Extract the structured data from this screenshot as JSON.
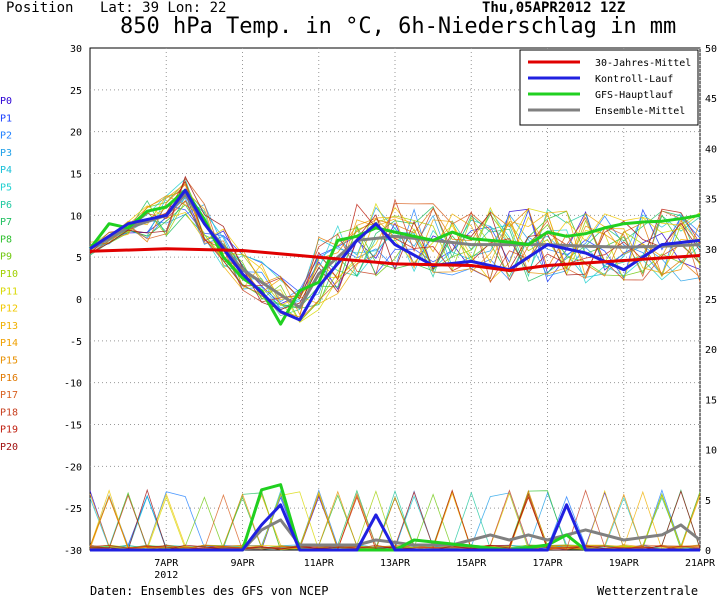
{
  "header": {
    "position_label": "Position",
    "coords": "Lat: 39  Lon: 22",
    "datestamp": "Thu,05APR2012 12Z",
    "title": "850 hPa Temp. in °C, 6h-Niederschlag in mm"
  },
  "footer": {
    "source": "Daten: Ensembles des GFS von NCEP",
    "credit": "Wetterzentrale"
  },
  "members": [
    {
      "name": "P0",
      "color": "#2a00d4"
    },
    {
      "name": "P1",
      "color": "#1a40ff"
    },
    {
      "name": "P2",
      "color": "#2080ff"
    },
    {
      "name": "P3",
      "color": "#20a0e8"
    },
    {
      "name": "P4",
      "color": "#18c0d8"
    },
    {
      "name": "P5",
      "color": "#20d0d0"
    },
    {
      "name": "P6",
      "color": "#20c8a0"
    },
    {
      "name": "P7",
      "color": "#20c060"
    },
    {
      "name": "P8",
      "color": "#30c030"
    },
    {
      "name": "P9",
      "color": "#70c810"
    },
    {
      "name": "P10",
      "color": "#a0d000"
    },
    {
      "name": "P11",
      "color": "#d8d800"
    },
    {
      "name": "P12",
      "color": "#f0c800"
    },
    {
      "name": "P13",
      "color": "#f0b000"
    },
    {
      "name": "P14",
      "color": "#f0a000"
    },
    {
      "name": "P15",
      "color": "#e89000"
    },
    {
      "name": "P16",
      "color": "#e07800"
    },
    {
      "name": "P17",
      "color": "#d86020"
    },
    {
      "name": "P18",
      "color": "#c84020"
    },
    {
      "name": "P19",
      "color": "#c02010"
    },
    {
      "name": "P20",
      "color": "#a01010"
    }
  ],
  "chart_data": {
    "type": "line",
    "title": "850 hPa Temp. in °C, 6h-Niederschlag in mm",
    "x_type": "date",
    "xlim": [
      "2012-04-05T12:00",
      "2012-04-21T12:00"
    ],
    "x_ticks": [
      "7APR",
      "9APR",
      "11APR",
      "13APR",
      "15APR",
      "17APR",
      "19APR",
      "21APR"
    ],
    "x_tick_year": "2012",
    "y_left": {
      "label": "°C",
      "ylim": [
        -30,
        30
      ],
      "ticks": [
        "30",
        "25",
        "20",
        "15",
        "10",
        "5",
        "0",
        "-5",
        "-10",
        "-15",
        "-20",
        "-25",
        "-30"
      ]
    },
    "y_right": {
      "label": "mm",
      "ylim": [
        0,
        50
      ],
      "ticks": [
        "50",
        "45",
        "40",
        "35",
        "30",
        "25",
        "20",
        "15",
        "10",
        "5",
        "0"
      ]
    },
    "grid": true,
    "legend_position": "top-right",
    "legend": [
      {
        "name": "30-Jahres-Mittel",
        "color": "#e00000"
      },
      {
        "name": "Kontroll-Lauf",
        "color": "#2020e0"
      },
      {
        "name": "GFS-Hauptlauf",
        "color": "#20d020"
      },
      {
        "name": "Ensemble-Mittel",
        "color": "#808080"
      }
    ],
    "series": [
      {
        "name": "30-Jahres-Mittel",
        "axis": "left",
        "x": [
          "2012-04-05T12:00",
          "2012-04-07T12:00",
          "2012-04-09T12:00",
          "2012-04-11T12:00",
          "2012-04-13T12:00",
          "2012-04-15T12:00",
          "2012-04-16T12:00",
          "2012-04-17T12:00",
          "2012-04-19T12:00",
          "2012-04-21T12:00"
        ],
        "y": [
          5.7,
          6.0,
          5.8,
          5.0,
          4.2,
          4.0,
          3.4,
          4.0,
          4.6,
          5.2
        ]
      },
      {
        "name": "GFS-Hauptlauf",
        "axis": "left",
        "x": [
          "2012-04-05T12:00",
          "2012-04-06T00:00",
          "2012-04-06T12:00",
          "2012-04-07T00:00",
          "2012-04-07T12:00",
          "2012-04-08T00:00",
          "2012-04-08T12:00",
          "2012-04-09T00:00",
          "2012-04-09T12:00",
          "2012-04-10T00:00",
          "2012-04-10T12:00",
          "2012-04-11T00:00",
          "2012-04-11T12:00",
          "2012-04-12T00:00",
          "2012-04-12T12:00",
          "2012-04-13T00:00",
          "2012-04-13T12:00",
          "2012-04-14T00:00",
          "2012-04-14T12:00",
          "2012-04-15T00:00",
          "2012-04-15T12:00",
          "2012-04-16T00:00",
          "2012-04-16T12:00",
          "2012-04-17T00:00",
          "2012-04-17T12:00",
          "2012-04-18T00:00",
          "2012-04-18T12:00",
          "2012-04-19T00:00",
          "2012-04-19T12:00",
          "2012-04-20T00:00",
          "2012-04-20T12:00",
          "2012-04-21T00:00",
          "2012-04-21T12:00"
        ],
        "y": [
          6,
          9,
          8.5,
          10.5,
          11,
          13,
          9.5,
          5,
          2.5,
          1,
          -3,
          1,
          2,
          7,
          7.5,
          8.5,
          8,
          7.5,
          7,
          8,
          7.2,
          7,
          6.8,
          6.5,
          8,
          7.5,
          7.8,
          8.5,
          9,
          9.2,
          9.3,
          9.6,
          10
        ]
      },
      {
        "name": "Kontroll-Lauf",
        "axis": "left",
        "x": [
          "2012-04-05T12:00",
          "2012-04-06T12:00",
          "2012-04-07T12:00",
          "2012-04-08T00:00",
          "2012-04-08T12:00",
          "2012-04-09T12:00",
          "2012-04-10T12:00",
          "2012-04-11T00:00",
          "2012-04-11T12:00",
          "2012-04-12T12:00",
          "2012-04-13T00:00",
          "2012-04-13T12:00",
          "2012-04-14T12:00",
          "2012-04-15T12:00",
          "2012-04-16T12:00",
          "2012-04-17T12:00",
          "2012-04-18T12:00",
          "2012-04-19T12:00",
          "2012-04-20T12:00",
          "2012-04-21T12:00"
        ],
        "y": [
          6,
          9,
          10,
          13,
          9,
          3,
          -1.5,
          -2.5,
          1.5,
          7,
          9,
          6.5,
          4,
          4.5,
          3.5,
          6.5,
          5.5,
          3.5,
          6.5,
          7
        ]
      },
      {
        "name": "Ensemble-Mittel",
        "axis": "left",
        "x": [
          "2012-04-05T12:00",
          "2012-04-06T12:00",
          "2012-04-07T12:00",
          "2012-04-08T00:00",
          "2012-04-08T12:00",
          "2012-04-09T12:00",
          "2012-04-10T12:00",
          "2012-04-11T00:00",
          "2012-04-11T12:00",
          "2012-04-12T12:00",
          "2012-04-13T12:00",
          "2012-04-14T12:00",
          "2012-04-15T12:00",
          "2012-04-16T12:00",
          "2012-04-17T12:00",
          "2012-04-18T12:00",
          "2012-04-19T12:00",
          "2012-04-20T12:00",
          "2012-04-21T12:00"
        ],
        "y": [
          6,
          8.5,
          10,
          12.5,
          9,
          3.5,
          0.5,
          -1,
          3,
          7,
          7.5,
          7,
          6.5,
          6.5,
          6.5,
          6.3,
          6.2,
          6.3,
          6.5
        ]
      },
      {
        "name": "GFS-Hauptlauf",
        "axis": "right",
        "x": [
          "2012-04-05T12:00",
          "2012-04-09T12:00",
          "2012-04-10T00:00",
          "2012-04-10T12:00",
          "2012-04-11T00:00",
          "2012-04-13T12:00",
          "2012-04-14T00:00",
          "2012-04-16T12:00",
          "2012-04-17T12:00",
          "2012-04-18T00:00",
          "2012-04-18T12:00",
          "2012-04-21T12:00"
        ],
        "y": [
          0,
          0,
          6,
          6.5,
          0,
          0,
          1,
          0,
          0.5,
          1.5,
          0,
          0
        ]
      },
      {
        "name": "Kontroll-Lauf",
        "axis": "right",
        "x": [
          "2012-04-05T12:00",
          "2012-04-09T12:00",
          "2012-04-10T00:00",
          "2012-04-10T12:00",
          "2012-04-11T00:00",
          "2012-04-12T12:00",
          "2012-04-13T00:00",
          "2012-04-13T12:00",
          "2012-04-17T12:00",
          "2012-04-18T00:00",
          "2012-04-18T12:00",
          "2012-04-21T12:00"
        ],
        "y": [
          0,
          0,
          2.5,
          4.5,
          0,
          0,
          3.5,
          0,
          0,
          4.5,
          0,
          0
        ]
      },
      {
        "name": "Ensemble-Mittel",
        "axis": "right",
        "x": [
          "2012-04-05T12:00",
          "2012-04-09T12:00",
          "2012-04-10T00:00",
          "2012-04-10T12:00",
          "2012-04-11T00:00",
          "2012-04-12T12:00",
          "2012-04-13T00:00",
          "2012-04-14T00:00",
          "2012-04-15T00:00",
          "2012-04-16T00:00",
          "2012-04-16T12:00",
          "2012-04-17T00:00",
          "2012-04-17T12:00",
          "2012-04-18T00:00",
          "2012-04-18T12:00",
          "2012-04-19T12:00",
          "2012-04-20T12:00",
          "2012-04-21T00:00",
          "2012-04-21T12:00"
        ],
        "y": [
          0,
          0,
          2,
          3,
          0.5,
          0.5,
          1,
          0.5,
          0.5,
          1.5,
          1,
          1.5,
          1,
          1.5,
          2,
          1,
          1.5,
          2.5,
          1
        ]
      }
    ],
    "annotations": []
  }
}
